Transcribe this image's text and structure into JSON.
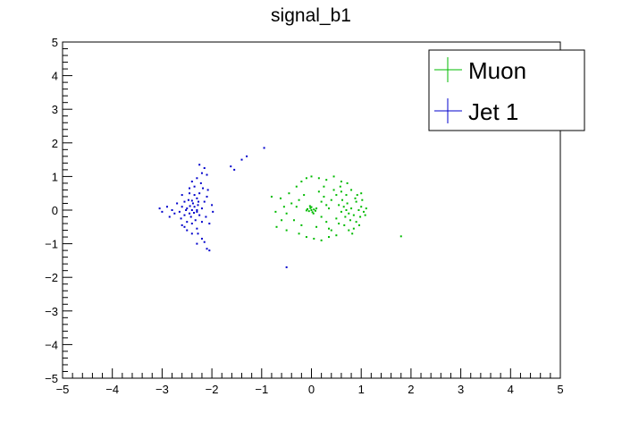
{
  "chart_data": {
    "type": "scatter",
    "title": "signal_b1",
    "xlim": [
      -5,
      5
    ],
    "ylim": [
      -5,
      5
    ],
    "x_ticks": [
      "−5",
      "−4",
      "−3",
      "−2",
      "−1",
      "0",
      "1",
      "2",
      "3",
      "4",
      "5"
    ],
    "y_ticks": [
      "−5",
      "−4",
      "−3",
      "−2",
      "−1",
      "0",
      "1",
      "2",
      "3",
      "4",
      "5"
    ],
    "grid": false,
    "legend_position": "top-right",
    "series": [
      {
        "name": "Muon",
        "color": "#00bb00",
        "points": [
          [
            0.0,
            0.0
          ],
          [
            0.05,
            0.02
          ],
          [
            -0.05,
            -0.03
          ],
          [
            0.02,
            -0.06
          ],
          [
            -0.02,
            0.06
          ],
          [
            0.08,
            -0.02
          ],
          [
            -0.08,
            0.03
          ],
          [
            0.0,
            0.09
          ],
          [
            0.04,
            -0.1
          ],
          [
            -0.1,
            -0.01
          ],
          [
            0.1,
            0.05
          ],
          [
            -0.03,
            0.12
          ],
          [
            0.7,
            0.0
          ],
          [
            0.65,
            0.1
          ],
          [
            0.75,
            -0.1
          ],
          [
            0.6,
            -0.05
          ],
          [
            0.8,
            0.05
          ],
          [
            0.72,
            0.2
          ],
          [
            0.68,
            -0.2
          ],
          [
            0.55,
            0.15
          ],
          [
            0.85,
            -0.15
          ],
          [
            0.62,
            0.3
          ],
          [
            0.78,
            -0.3
          ],
          [
            0.5,
            -0.25
          ],
          [
            0.9,
            0.25
          ],
          [
            0.7,
            0.45
          ],
          [
            0.66,
            -0.45
          ],
          [
            0.8,
            0.6
          ],
          [
            0.75,
            -0.6
          ],
          [
            0.58,
            0.7
          ],
          [
            0.6,
            0.85
          ],
          [
            0.72,
            0.8
          ],
          [
            0.82,
            -0.7
          ],
          [
            0.95,
            0.0
          ],
          [
            1.0,
            0.1
          ],
          [
            1.05,
            -0.05
          ],
          [
            1.1,
            0.05
          ],
          [
            0.98,
            -0.2
          ],
          [
            1.02,
            0.3
          ],
          [
            0.92,
            0.45
          ],
          [
            0.96,
            -0.45
          ],
          [
            1.08,
            -0.15
          ],
          [
            -0.4,
            0.2
          ],
          [
            -0.35,
            -0.3
          ],
          [
            -0.45,
            0.5
          ],
          [
            -0.3,
            0.7
          ],
          [
            -0.2,
            0.85
          ],
          [
            -0.1,
            0.95
          ],
          [
            0.0,
            1.0
          ],
          [
            0.15,
            0.95
          ],
          [
            0.3,
            0.9
          ],
          [
            0.45,
            1.0
          ],
          [
            -0.25,
            -0.7
          ],
          [
            -0.1,
            -0.8
          ],
          [
            0.05,
            -0.85
          ],
          [
            0.2,
            -0.9
          ],
          [
            0.35,
            -0.8
          ],
          [
            0.5,
            -0.75
          ],
          [
            -0.5,
            -0.1
          ],
          [
            -0.55,
            0.1
          ],
          [
            -0.6,
            -0.3
          ],
          [
            -0.62,
            0.35
          ],
          [
            -0.8,
            0.4
          ],
          [
            -0.72,
            -0.05
          ],
          [
            -0.7,
            -0.5
          ],
          [
            -0.5,
            -0.6
          ],
          [
            0.25,
            0.4
          ],
          [
            0.3,
            -0.35
          ],
          [
            0.15,
            0.55
          ],
          [
            0.4,
            0.3
          ],
          [
            0.35,
            -0.55
          ],
          [
            0.2,
            -0.2
          ],
          [
            0.45,
            0.6
          ],
          [
            0.5,
            0.45
          ],
          [
            0.4,
            -0.6
          ],
          [
            0.25,
            0.7
          ],
          [
            0.1,
            -0.5
          ],
          [
            -0.15,
            0.45
          ],
          [
            -0.2,
            -0.45
          ],
          [
            -0.3,
            0.1
          ],
          [
            -0.25,
            0.3
          ],
          [
            0.55,
            -0.4
          ],
          [
            0.6,
            0.55
          ],
          [
            0.88,
            0.35
          ],
          [
            0.9,
            -0.35
          ],
          [
            1.0,
            0.5
          ],
          [
            0.85,
            -0.55
          ],
          [
            0.3,
            0.15
          ],
          [
            0.2,
            0.25
          ],
          [
            0.35,
            0.05
          ],
          [
            1.8,
            -0.78
          ]
        ]
      },
      {
        "name": "Jet 1",
        "color": "#0000cc",
        "points": [
          [
            -2.4,
            0.0
          ],
          [
            -2.35,
            0.1
          ],
          [
            -2.45,
            -0.1
          ],
          [
            -2.3,
            -0.05
          ],
          [
            -2.5,
            0.05
          ],
          [
            -2.38,
            0.2
          ],
          [
            -2.42,
            -0.2
          ],
          [
            -2.28,
            0.15
          ],
          [
            -2.55,
            -0.15
          ],
          [
            -2.33,
            -0.3
          ],
          [
            -2.47,
            0.3
          ],
          [
            -2.25,
            -0.15
          ],
          [
            -2.6,
            0.1
          ],
          [
            -2.2,
            0.05
          ],
          [
            -2.65,
            -0.05
          ],
          [
            -2.3,
            0.35
          ],
          [
            -2.4,
            -0.4
          ],
          [
            -2.35,
            0.45
          ],
          [
            -2.5,
            -0.35
          ],
          [
            -2.2,
            -0.35
          ],
          [
            -2.25,
            0.5
          ],
          [
            -2.45,
            0.5
          ],
          [
            -2.3,
            -0.55
          ],
          [
            -2.55,
            0.25
          ],
          [
            -2.7,
            0.2
          ],
          [
            -2.75,
            -0.1
          ],
          [
            -2.8,
            0.0
          ],
          [
            -2.62,
            -0.25
          ],
          [
            -2.15,
            0.25
          ],
          [
            -2.12,
            -0.2
          ],
          [
            -2.18,
            0.65
          ],
          [
            -2.22,
            0.8
          ],
          [
            -2.3,
            0.95
          ],
          [
            -2.2,
            1.1
          ],
          [
            -2.15,
            1.25
          ],
          [
            -2.25,
            1.35
          ],
          [
            -2.1,
            1.05
          ],
          [
            -2.35,
            0.7
          ],
          [
            -2.4,
            0.85
          ],
          [
            -2.28,
            -0.7
          ],
          [
            -2.2,
            -0.85
          ],
          [
            -2.15,
            -0.95
          ],
          [
            -2.3,
            -1.0
          ],
          [
            -2.1,
            -1.15
          ],
          [
            -2.05,
            -1.2
          ],
          [
            -2.4,
            -0.7
          ],
          [
            -2.5,
            -0.6
          ],
          [
            -2.6,
            -0.45
          ],
          [
            -2.9,
            0.1
          ],
          [
            -3.0,
            -0.05
          ],
          [
            -3.05,
            0.05
          ],
          [
            -2.85,
            -0.2
          ],
          [
            -2.1,
            0.4
          ],
          [
            -2.05,
            -0.4
          ],
          [
            -2.0,
            0.15
          ],
          [
            -1.98,
            -0.05
          ],
          [
            -2.08,
            0.6
          ],
          [
            -2.45,
            0.65
          ],
          [
            -2.55,
            -0.5
          ],
          [
            -2.6,
            0.45
          ],
          [
            -2.3,
            0.0
          ],
          [
            -2.36,
            -0.08
          ],
          [
            -2.44,
            0.12
          ],
          [
            -2.52,
            0.0
          ],
          [
            -2.27,
            0.25
          ],
          [
            -2.4,
            0.28
          ],
          [
            -1.62,
            1.3
          ],
          [
            -1.55,
            1.2
          ],
          [
            -1.4,
            1.5
          ],
          [
            -1.3,
            1.6
          ],
          [
            -0.95,
            1.85
          ],
          [
            -0.5,
            -1.7
          ]
        ]
      }
    ]
  }
}
